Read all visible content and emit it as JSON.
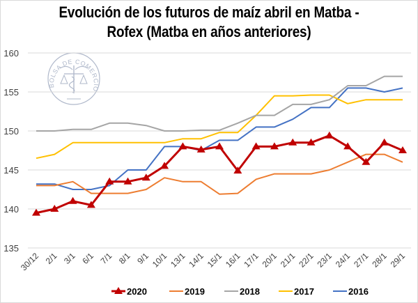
{
  "chart_data": {
    "type": "line",
    "title_line1": "Evolución de los futuros de maíz abril en Matba -",
    "title_line2": "Rofex (Matba en años anteriores)",
    "xlabel": "",
    "ylabel": "",
    "ylim": [
      135,
      160
    ],
    "yticks": [
      "135",
      "140",
      "145",
      "150",
      "155",
      "160"
    ],
    "grid": true,
    "legend_position": "bottom",
    "watermark": "BOLSA DE COMERCIO DE ROSARIO",
    "categories": [
      "30/12",
      "2/1",
      "3/1",
      "6/1",
      "7/1",
      "8/1",
      "9/1",
      "10/1",
      "13/1",
      "14/1",
      "15/1",
      "16/1",
      "17/1",
      "20/1",
      "21/1",
      "22/1",
      "23/1",
      "24/1",
      "27/1",
      "28/1",
      "29/1"
    ],
    "series": [
      {
        "name": "2020",
        "color": "#c00000",
        "marker": "triangle",
        "values": [
          139.5,
          140.0,
          141.0,
          140.5,
          143.5,
          143.5,
          144.0,
          145.5,
          148.0,
          147.6,
          148.0,
          144.9,
          148.0,
          148.0,
          148.5,
          148.5,
          149.4,
          148.0,
          146.0,
          148.5,
          147.5
        ]
      },
      {
        "name": "2019",
        "color": "#ed7d31",
        "marker": "none",
        "values": [
          143.0,
          143.0,
          143.5,
          142.0,
          142.0,
          142.0,
          142.5,
          144.0,
          143.5,
          143.5,
          141.9,
          142.0,
          143.8,
          144.5,
          144.5,
          144.5,
          145.0,
          146.0,
          147.0,
          147.0,
          146.0
        ]
      },
      {
        "name": "2018",
        "color": "#a5a5a5",
        "marker": "none",
        "values": [
          150.0,
          150.0,
          150.2,
          150.2,
          151.0,
          151.0,
          150.7,
          150.0,
          150.0,
          150.1,
          150.1,
          151.0,
          152.0,
          152.0,
          153.4,
          153.4,
          154.0,
          155.8,
          155.8,
          157.0,
          157.0
        ]
      },
      {
        "name": "2017",
        "color": "#ffc000",
        "marker": "none",
        "values": [
          146.5,
          147.0,
          148.5,
          148.5,
          148.5,
          148.5,
          148.5,
          148.5,
          149.0,
          149.0,
          149.8,
          149.8,
          152.0,
          154.5,
          154.5,
          154.6,
          154.6,
          153.5,
          154.0,
          154.0,
          154.0
        ]
      },
      {
        "name": "2016",
        "color": "#4472c4",
        "marker": "none",
        "values": [
          143.2,
          143.2,
          142.5,
          142.5,
          143.0,
          145.0,
          145.0,
          148.0,
          148.0,
          147.5,
          148.8,
          148.8,
          150.5,
          150.5,
          151.5,
          153.0,
          153.0,
          155.5,
          155.5,
          155.0,
          155.5
        ]
      }
    ]
  }
}
